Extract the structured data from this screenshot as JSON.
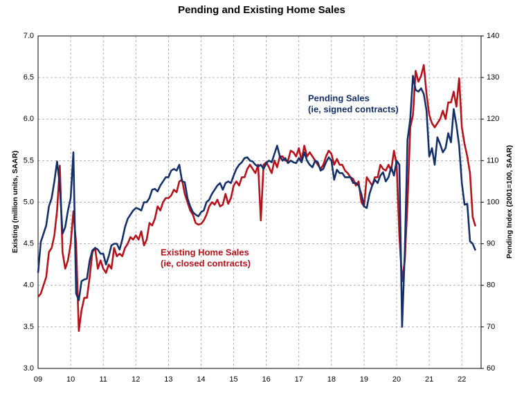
{
  "chart_data": {
    "type": "line",
    "title": "Pending and Existing Home Sales",
    "y_label": "Existing (million units, SAAR)",
    "y2_label": "Pending Index (2001=100, SAAR)",
    "annotations": [
      {
        "lines": [
          "Pending Sales",
          "(ie, signed contracts)"
        ],
        "color": "#13306b"
      },
      {
        "lines": [
          "Existing Home Sales",
          "(ie, closed contracts)"
        ],
        "color": "#b5121b"
      }
    ],
    "xlim": [
      2009,
      2022.59
    ],
    "xticks": [
      {
        "value": 2009,
        "label": "09"
      },
      {
        "value": 2010,
        "label": "10"
      },
      {
        "value": 2011,
        "label": "11"
      },
      {
        "value": 2012,
        "label": "12"
      },
      {
        "value": 2013,
        "label": "13"
      },
      {
        "value": 2014,
        "label": "14"
      },
      {
        "value": 2015,
        "label": "15"
      },
      {
        "value": 2016,
        "label": "16"
      },
      {
        "value": 2017,
        "label": "17"
      },
      {
        "value": 2018,
        "label": "18"
      },
      {
        "value": 2019,
        "label": "19"
      },
      {
        "value": 2020,
        "label": "20"
      },
      {
        "value": 2021,
        "label": "21"
      },
      {
        "value": 2022,
        "label": "22"
      }
    ],
    "ylim": [
      3,
      7
    ],
    "yticks": [
      {
        "value": 3,
        "label": "3.0"
      },
      3.5,
      {
        "value": 4,
        "label": "4.0"
      },
      4.5,
      {
        "value": 5,
        "label": "5.0"
      },
      5.5,
      {
        "value": 6,
        "label": "6.0"
      },
      6.5,
      {
        "value": 7,
        "label": "7.0"
      }
    ],
    "y2lim": [
      60,
      140
    ],
    "y2ticks": [
      60,
      70,
      80,
      90,
      100,
      110,
      120,
      130,
      140
    ],
    "grid": true,
    "x": [
      2009,
      2009.083,
      2009.167,
      2009.25,
      2009.333,
      2009.417,
      2009.5,
      2009.583,
      2009.667,
      2009.75,
      2009.833,
      2009.917,
      2010,
      2010.083,
      2010.167,
      2010.25,
      2010.333,
      2010.417,
      2010.5,
      2010.583,
      2010.667,
      2010.75,
      2010.833,
      2010.917,
      2011,
      2011.083,
      2011.167,
      2011.25,
      2011.333,
      2011.417,
      2011.5,
      2011.583,
      2011.667,
      2011.75,
      2011.833,
      2011.917,
      2012,
      2012.083,
      2012.167,
      2012.25,
      2012.333,
      2012.417,
      2012.5,
      2012.583,
      2012.667,
      2012.75,
      2012.833,
      2012.917,
      2013,
      2013.083,
      2013.167,
      2013.25,
      2013.333,
      2013.417,
      2013.5,
      2013.583,
      2013.667,
      2013.75,
      2013.833,
      2013.917,
      2014,
      2014.083,
      2014.167,
      2014.25,
      2014.333,
      2014.417,
      2014.5,
      2014.583,
      2014.667,
      2014.75,
      2014.833,
      2014.917,
      2015,
      2015.083,
      2015.167,
      2015.25,
      2015.333,
      2015.417,
      2015.5,
      2015.583,
      2015.667,
      2015.75,
      2015.833,
      2015.917,
      2016,
      2016.083,
      2016.167,
      2016.25,
      2016.333,
      2016.417,
      2016.5,
      2016.583,
      2016.667,
      2016.75,
      2016.833,
      2016.917,
      2017,
      2017.083,
      2017.167,
      2017.25,
      2017.333,
      2017.417,
      2017.5,
      2017.583,
      2017.667,
      2017.75,
      2017.833,
      2017.917,
      2018,
      2018.083,
      2018.167,
      2018.25,
      2018.333,
      2018.417,
      2018.5,
      2018.583,
      2018.667,
      2018.75,
      2018.833,
      2018.917,
      2019,
      2019.083,
      2019.167,
      2019.25,
      2019.333,
      2019.417,
      2019.5,
      2019.583,
      2019.667,
      2019.75,
      2019.833,
      2019.917,
      2020,
      2020.083,
      2020.167,
      2020.25,
      2020.333,
      2020.417,
      2020.5,
      2020.583,
      2020.667,
      2020.75,
      2020.833,
      2020.917,
      2021,
      2021.083,
      2021.167,
      2021.25,
      2021.333,
      2021.417,
      2021.5,
      2021.583,
      2021.667,
      2021.75,
      2021.833,
      2021.917,
      2022,
      2022.083,
      2022.167,
      2022.25,
      2022.333,
      2022.417
    ],
    "series": [
      {
        "name": "Existing Home Sales",
        "color": "#b5121b",
        "values": [
          3.86,
          3.9,
          4.0,
          4.1,
          4.4,
          4.45,
          4.6,
          4.9,
          5.44,
          4.4,
          4.2,
          4.3,
          4.5,
          4.89,
          4.5,
          3.45,
          3.7,
          3.85,
          3.85,
          4.1,
          4.4,
          4.45,
          4.2,
          4.3,
          4.2,
          4.15,
          4.25,
          4.2,
          4.45,
          4.35,
          4.38,
          4.35,
          4.45,
          4.5,
          4.58,
          4.55,
          4.6,
          4.55,
          4.65,
          4.48,
          4.55,
          4.75,
          4.72,
          4.8,
          4.95,
          4.9,
          5.0,
          5.05,
          5.05,
          5.08,
          5.15,
          5.12,
          5.25,
          5.27,
          5.1,
          5.0,
          4.9,
          4.85,
          4.75,
          4.73,
          4.74,
          4.78,
          4.85,
          4.95,
          5.0,
          4.97,
          5.03,
          4.95,
          4.97,
          5.1,
          4.98,
          5.05,
          5.2,
          5.25,
          5.2,
          5.3,
          5.3,
          5.4,
          5.45,
          5.4,
          5.35,
          5.45,
          4.78,
          5.45,
          5.48,
          5.42,
          5.35,
          5.5,
          5.42,
          5.55,
          5.55,
          5.5,
          5.5,
          5.62,
          5.6,
          5.55,
          5.65,
          5.5,
          5.68,
          5.55,
          5.6,
          5.55,
          5.5,
          5.45,
          5.4,
          5.45,
          5.55,
          5.62,
          5.58,
          5.45,
          5.52,
          5.45,
          5.45,
          5.38,
          5.35,
          5.3,
          5.28,
          5.2,
          5.25,
          5.0,
          4.95,
          5.3,
          5.25,
          5.2,
          5.3,
          5.3,
          5.45,
          5.4,
          5.38,
          5.45,
          5.38,
          5.62,
          5.45,
          4.6,
          4.05,
          4.3,
          5.0,
          5.9,
          6.05,
          6.58,
          6.45,
          6.52,
          6.65,
          6.3,
          6.05,
          5.95,
          5.9,
          5.95,
          6.0,
          6.1,
          6.0,
          6.2,
          6.2,
          6.33,
          6.15,
          6.49,
          5.9,
          5.7,
          5.55,
          5.35,
          4.82,
          4.71
        ]
      },
      {
        "name": "Pending Sales",
        "color": "#13306b",
        "axis": "y2",
        "values": [
          83,
          90.4,
          92.4,
          94.4,
          99,
          101,
          105,
          109.8,
          104,
          92.4,
          94,
          98,
          101,
          112,
          78,
          76.4,
          81,
          81.4,
          81.6,
          86,
          88.4,
          89,
          88.6,
          87.6,
          87.6,
          85,
          87,
          89.6,
          90,
          90,
          88.6,
          91,
          94,
          96,
          97,
          98,
          98.6,
          98.4,
          98,
          100,
          100,
          101,
          103,
          103.2,
          102.6,
          104,
          105,
          106,
          106,
          107.6,
          108,
          107.6,
          109,
          105,
          104.8,
          101,
          99,
          97.6,
          97,
          96.6,
          97.6,
          98,
          100,
          100.6,
          102,
          103,
          104,
          104.6,
          103,
          104.6,
          105,
          104.6,
          106.4,
          108,
          109,
          109.6,
          110.6,
          110.8,
          110,
          109.8,
          109,
          108.6,
          109,
          108,
          109.4,
          110,
          109.6,
          111.6,
          113.6,
          111,
          110,
          110.6,
          109.4,
          110,
          109.6,
          109.4,
          110.6,
          109.6,
          112,
          110,
          109,
          108.4,
          110,
          109.6,
          107.6,
          108,
          109.6,
          110.8,
          110,
          105.4,
          107.8,
          107,
          107,
          106,
          106,
          106,
          104.6,
          104.6,
          104,
          102,
          99,
          98.6,
          102,
          104,
          105.4,
          104.6,
          106.4,
          107.2,
          105,
          106,
          108.4,
          106.4,
          110,
          109,
          70,
          88,
          115,
          120,
          130.4,
          127,
          126.6,
          127.4,
          126,
          122,
          111,
          113,
          109,
          115.6,
          114,
          112,
          113,
          116.6,
          114.4,
          122.4,
          118.6,
          113.6,
          104.6,
          99.4,
          99.6,
          90.6,
          90,
          88.4
        ]
      }
    ]
  }
}
